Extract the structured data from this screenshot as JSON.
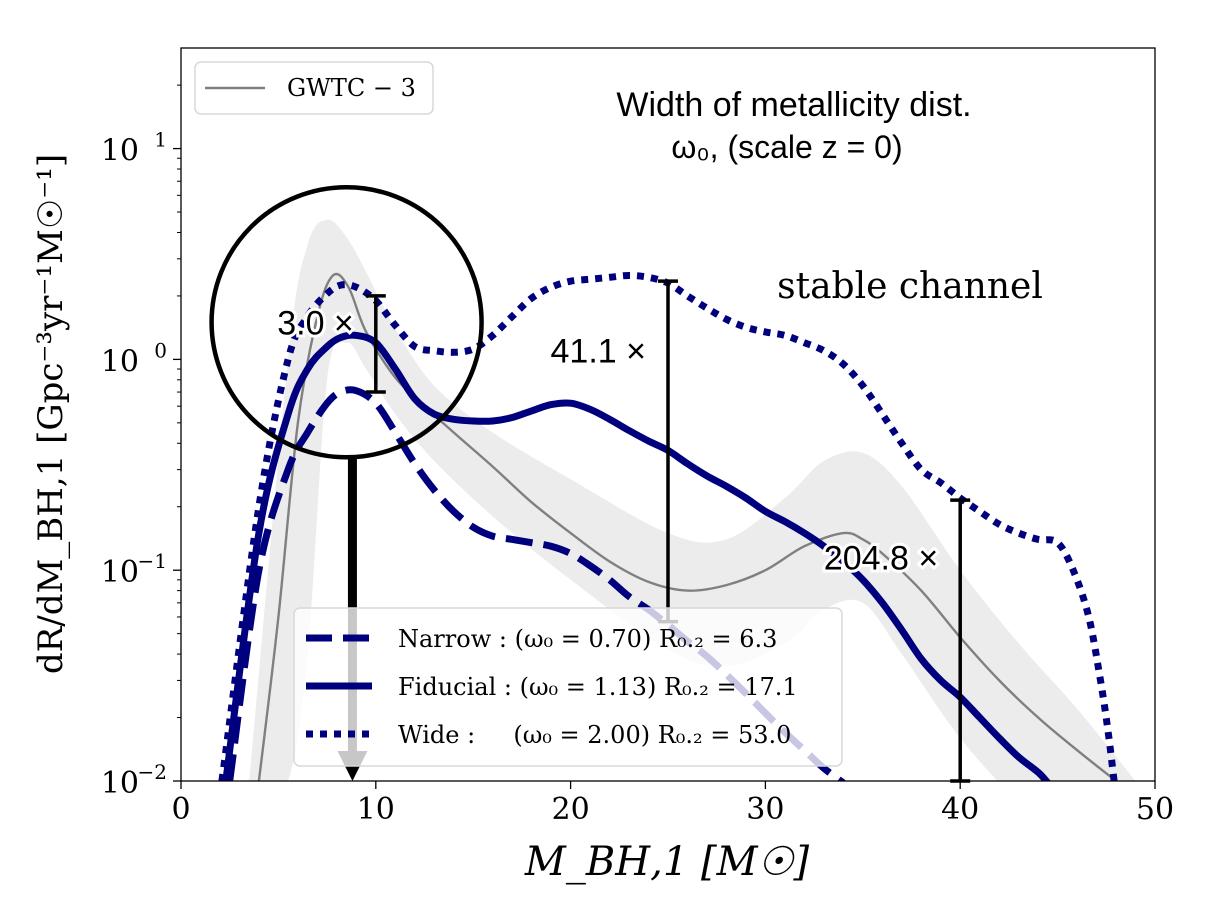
{
  "chart_data": {
    "type": "line",
    "title": "Width of metallicity dist.",
    "subtitle": "ω₀, (scale z = 0)",
    "xlabel": "M_BH,1 [M☉]",
    "ylabel": "dR/dM_BH,1 [Gpc⁻³yr⁻¹M☉⁻¹]",
    "xlim": [
      0,
      50
    ],
    "ylim": [
      0.01,
      30
    ],
    "yscale": "log",
    "xticks": [
      0,
      10,
      20,
      30,
      40,
      50
    ],
    "xtick_labels": [
      "0",
      "10",
      "20",
      "30",
      "40",
      "50"
    ],
    "yticks": [
      0.01,
      0.1,
      1,
      10
    ],
    "ytick_base": "10",
    "ytick_exponents": [
      "−2",
      "−1",
      "0",
      "1"
    ],
    "grid": false,
    "legend_top": {
      "placement": "top-left",
      "entries": [
        "GWTC − 3"
      ]
    },
    "legend_bottom": {
      "placement": "lower-center",
      "entries": [
        "Narrow : (ω₀ = 0.70) R₀.₂ = 6.3",
        "Fiducial : (ω₀ = 1.13) R₀.₂ = 17.1",
        "Wide :     (ω₀ = 2.00) R₀.₂ = 53.0"
      ]
    },
    "channel_label": "stable channel",
    "colors": {
      "model": "#00007f",
      "gwtc": "#808080",
      "band": "#ececec",
      "annotation": "#000000"
    },
    "gwtc_band": {
      "x": [
        3.5,
        5.5,
        6.5,
        7.5,
        8.5,
        9.5,
        11,
        13,
        16,
        20,
        25,
        28,
        31,
        33,
        35,
        37,
        40,
        43,
        46,
        49
      ],
      "upper": [
        0.01,
        1.0,
        3.5,
        4.6,
        3.8,
        2.6,
        1.4,
        0.75,
        0.45,
        0.27,
        0.15,
        0.14,
        0.22,
        0.33,
        0.36,
        0.25,
        0.1,
        0.045,
        0.022,
        0.01
      ],
      "lower": [
        0.005,
        0.01,
        0.04,
        0.8,
        1.2,
        0.9,
        0.55,
        0.33,
        0.18,
        0.09,
        0.042,
        0.035,
        0.045,
        0.065,
        0.07,
        0.04,
        0.016,
        0.008,
        0.005,
        0.004
      ]
    },
    "series": [
      {
        "name": "GWTC − 3",
        "style": "thin-solid",
        "x": [
          4.0,
          5.0,
          6.0,
          7.0,
          7.8,
          8.6,
          9.5,
          11,
          12.5,
          14,
          16,
          18,
          20,
          22,
          24,
          26,
          28,
          30,
          32,
          34,
          35,
          36,
          38,
          40,
          42,
          44,
          46,
          48
        ],
        "y": [
          0.01,
          0.06,
          0.5,
          1.6,
          2.5,
          2.2,
          1.35,
          0.82,
          0.6,
          0.45,
          0.31,
          0.21,
          0.15,
          0.11,
          0.088,
          0.08,
          0.085,
          0.1,
          0.13,
          0.15,
          0.14,
          0.12,
          0.08,
          0.048,
          0.03,
          0.02,
          0.014,
          0.01
        ]
      },
      {
        "name": "Narrow",
        "style": "dashed",
        "x": [
          2.5,
          4.0,
          5.5,
          6.5,
          7.5,
          8.2,
          9.0,
          10,
          11,
          12,
          13,
          14,
          15,
          16,
          17,
          18,
          19,
          20,
          21,
          22,
          23,
          24,
          25,
          26,
          27,
          28,
          29,
          30,
          31,
          32,
          33,
          34
        ],
        "y": [
          0.01,
          0.1,
          0.3,
          0.45,
          0.62,
          0.7,
          0.71,
          0.62,
          0.45,
          0.32,
          0.24,
          0.19,
          0.16,
          0.145,
          0.14,
          0.135,
          0.13,
          0.12,
          0.105,
          0.09,
          0.075,
          0.065,
          0.055,
          0.046,
          0.039,
          0.032,
          0.026,
          0.021,
          0.017,
          0.014,
          0.0115,
          0.0098
        ]
      },
      {
        "name": "Fiducial",
        "style": "solid",
        "x": [
          2.3,
          4.0,
          5.5,
          6.5,
          7.5,
          8.2,
          9.0,
          10,
          11,
          12,
          13,
          14,
          15,
          16,
          17,
          18,
          19,
          20,
          21,
          22,
          23,
          24,
          25,
          26,
          27,
          28,
          29,
          30,
          31,
          32,
          33,
          34,
          35,
          36,
          37,
          38,
          39,
          40,
          41,
          42,
          43,
          44,
          44.5
        ],
        "y": [
          0.01,
          0.15,
          0.55,
          0.9,
          1.15,
          1.27,
          1.3,
          1.2,
          0.9,
          0.65,
          0.55,
          0.52,
          0.51,
          0.51,
          0.53,
          0.57,
          0.61,
          0.62,
          0.58,
          0.52,
          0.46,
          0.41,
          0.37,
          0.32,
          0.28,
          0.25,
          0.22,
          0.19,
          0.17,
          0.15,
          0.13,
          0.11,
          0.09,
          0.07,
          0.052,
          0.038,
          0.03,
          0.025,
          0.02,
          0.016,
          0.013,
          0.011,
          0.0098
        ]
      },
      {
        "name": "Wide",
        "style": "dotted",
        "x": [
          2.1,
          4.0,
          5.5,
          6.5,
          7.5,
          8.2,
          9.0,
          10,
          11,
          12,
          13,
          14,
          15,
          16,
          17,
          18,
          19,
          20,
          21,
          22,
          23,
          24,
          25,
          26,
          27,
          28,
          29,
          30,
          31,
          32,
          33,
          34,
          35,
          36,
          37,
          38,
          39,
          40,
          41,
          42,
          43,
          44,
          45,
          45.8,
          46.6,
          47.2,
          47.6,
          47.9
        ],
        "y": [
          0.01,
          0.2,
          1.0,
          1.6,
          2.05,
          2.25,
          2.2,
          1.9,
          1.45,
          1.15,
          1.1,
          1.08,
          1.12,
          1.3,
          1.6,
          1.95,
          2.2,
          2.35,
          2.4,
          2.45,
          2.5,
          2.45,
          2.3,
          2.0,
          1.75,
          1.55,
          1.42,
          1.35,
          1.3,
          1.2,
          1.1,
          0.95,
          0.75,
          0.55,
          0.4,
          0.3,
          0.26,
          0.22,
          0.19,
          0.165,
          0.15,
          0.14,
          0.135,
          0.1,
          0.06,
          0.03,
          0.017,
          0.01
        ]
      }
    ],
    "annotations": [
      {
        "label": "3.0 ×",
        "x": 10,
        "y_low": 0.7,
        "y_high": 2.0
      },
      {
        "label": "41.1 ×",
        "x": 25,
        "y_low": 0.057,
        "y_high": 2.35
      },
      {
        "label": "204.8 ×",
        "x": 40,
        "y_low": 0.01,
        "y_high": 0.215
      }
    ],
    "highlight": {
      "shape": "circle",
      "center_x": 8.5,
      "center_y": 1.5,
      "arrow_to_x": 8.8,
      "arrow_to_y": 0.01
    }
  }
}
